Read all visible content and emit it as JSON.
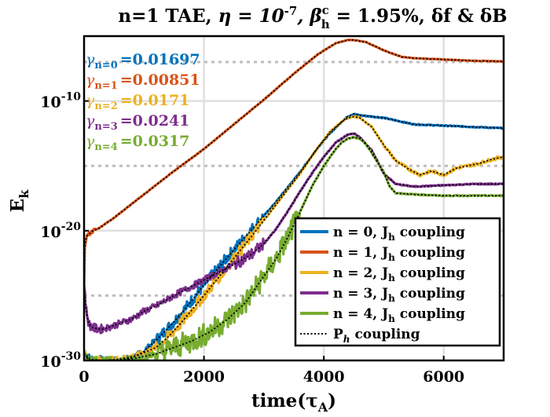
{
  "chart_data": {
    "type": "line",
    "title": "n=1 TAE, η = 10⁻⁷, βʰᶜ = 1.95%, δf & δB",
    "title_parts": {
      "lead": "n=1 TAE, ",
      "eta": "η = 10",
      "eta_exp": "-7",
      "beta": ", β",
      "beta_sup": "c",
      "beta_sub": "h",
      "beta_val": " = 1.95%, δf & δB"
    },
    "xlabel": "time(τ",
    "xlabel_sub": "A",
    "xlabel_close": ")",
    "ylabel": "E",
    "ylabel_sub": "k",
    "y_scale": "log",
    "xlim": [
      0,
      7000
    ],
    "ylim_exponent": [
      -30,
      -5
    ],
    "x_ticks": [
      {
        "value": 0,
        "label": "0"
      },
      {
        "value": 2000,
        "label": "2000"
      },
      {
        "value": 4000,
        "label": "4000"
      },
      {
        "value": 6000,
        "label": "6000"
      }
    ],
    "y_ticks": [
      {
        "exp": -10,
        "base": "10",
        "sup": "-10"
      },
      {
        "exp": -20,
        "base": "10",
        "sup": "-20"
      },
      {
        "exp": -30,
        "base": "10",
        "sup": "-30"
      }
    ],
    "grid": true,
    "legend_position": "bottom-right",
    "growth_rates": [
      {
        "symbol": "γ",
        "sub": "n=0",
        "value": "=0.01697",
        "color": "#0072BD"
      },
      {
        "symbol": "γ",
        "sub": "n=1",
        "value": "=0.00851",
        "color": "#D95319"
      },
      {
        "symbol": "γ",
        "sub": "n=2",
        "value": "=0.0171",
        "color": "#EDB120"
      },
      {
        "symbol": "γ",
        "sub": "n=3",
        "value": "=0.0241",
        "color": "#7E2F8E"
      },
      {
        "symbol": "γ",
        "sub": "n=4",
        "value": "=0.0317",
        "color": "#77AC30"
      }
    ],
    "series": [
      {
        "name": "n = 0, J",
        "name_sub": "h",
        "name_tail": " coupling",
        "color": "#0072BD",
        "x": [
          0,
          100,
          300,
          600,
          800,
          1000,
          1300,
          1600,
          2000,
          2400,
          2800,
          3200,
          3600,
          3900,
          4100,
          4300,
          4400,
          4500,
          4600,
          5000,
          5500,
          6000,
          6500,
          7000
        ],
        "log_e": [
          -29.4,
          -29.9,
          -30.0,
          -30.0,
          -29.8,
          -29.3,
          -28.0,
          -26.5,
          -24.2,
          -22.0,
          -19.9,
          -17.8,
          -15.5,
          -13.6,
          -12.5,
          -11.6,
          -11.2,
          -11.0,
          -11.1,
          -11.3,
          -11.8,
          -11.9,
          -12.0,
          -12.1
        ]
      },
      {
        "name": "n = 1, J",
        "name_sub": "h",
        "name_tail": " coupling",
        "color": "#D95319",
        "x": [
          0,
          10,
          30,
          60,
          100,
          150,
          250,
          500,
          1000,
          1500,
          2000,
          2500,
          3000,
          3500,
          3900,
          4200,
          4400,
          4500,
          4700,
          5000,
          5300,
          5500,
          6000,
          6500,
          7000
        ],
        "log_e": [
          -24.5,
          -21.5,
          -20.6,
          -20.3,
          -20.2,
          -20.0,
          -19.8,
          -19.0,
          -17.2,
          -15.4,
          -13.7,
          -11.8,
          -9.9,
          -7.9,
          -6.4,
          -5.55,
          -5.3,
          -5.3,
          -5.45,
          -6.1,
          -6.6,
          -6.7,
          -6.8,
          -6.9,
          -6.95
        ]
      },
      {
        "name": "n = 2, J",
        "name_sub": "h",
        "name_tail": " coupling",
        "color": "#EDB120",
        "x": [
          0,
          100,
          300,
          600,
          900,
          1200,
          1400,
          1600,
          2000,
          2400,
          2800,
          3200,
          3600,
          3900,
          4100,
          4300,
          4400,
          4500,
          4600,
          4800,
          5000,
          5200,
          5400,
          5600,
          5800,
          6000,
          6200,
          6400,
          6600,
          6800,
          7000
        ],
        "log_e": [
          -29.5,
          -30.0,
          -30.0,
          -29.9,
          -29.6,
          -29.0,
          -28.2,
          -27.2,
          -25.0,
          -22.7,
          -20.4,
          -18.0,
          -15.6,
          -13.6,
          -12.4,
          -11.6,
          -11.3,
          -11.2,
          -11.3,
          -12.0,
          -13.4,
          -14.6,
          -15.2,
          -15.7,
          -15.4,
          -15.7,
          -15.2,
          -15.0,
          -14.8,
          -14.5,
          -14.3
        ]
      },
      {
        "name": "n = 3, J",
        "name_sub": "h",
        "name_tail": " coupling",
        "color": "#7E2F8E",
        "x": [
          0,
          30,
          80,
          150,
          300,
          500,
          800,
          1000,
          1200,
          1500,
          2000,
          2500,
          2800,
          3000,
          3200,
          3400,
          3600,
          3800,
          4000,
          4200,
          4400,
          4500,
          4600,
          4800,
          5000,
          5200,
          5500,
          6000,
          6500,
          7000
        ],
        "log_e": [
          -24.0,
          -26.0,
          -27.2,
          -27.5,
          -27.6,
          -27.3,
          -26.8,
          -26.2,
          -25.8,
          -25.0,
          -23.8,
          -22.6,
          -21.8,
          -21.0,
          -19.9,
          -18.5,
          -17.0,
          -15.6,
          -14.3,
          -13.2,
          -12.6,
          -12.5,
          -12.8,
          -13.8,
          -15.6,
          -16.4,
          -16.6,
          -16.5,
          -16.4,
          -16.4
        ]
      },
      {
        "name": "n = 4, J",
        "name_sub": "h",
        "name_tail": " coupling",
        "color": "#77AC30",
        "x": [
          0,
          100,
          300,
          600,
          900,
          1200,
          1500,
          1800,
          2100,
          2400,
          2700,
          3000,
          3200,
          3400,
          3600,
          3800,
          4000,
          4200,
          4300,
          4400,
          4500,
          4600,
          4700,
          4800,
          5000,
          5100,
          5200,
          5500,
          6000,
          6500,
          7000
        ],
        "log_e": [
          -29.6,
          -30.0,
          -30.0,
          -30.0,
          -29.8,
          -29.5,
          -29.0,
          -28.5,
          -27.8,
          -26.8,
          -25.5,
          -23.5,
          -22.2,
          -20.5,
          -18.6,
          -16.6,
          -15.0,
          -13.7,
          -13.2,
          -12.9,
          -12.8,
          -12.9,
          -13.3,
          -14.0,
          -15.5,
          -16.6,
          -17.1,
          -17.2,
          -17.3,
          -17.3,
          -17.3
        ]
      }
    ],
    "reference": {
      "name": "P",
      "name_sub": "h",
      "name_tail": " coupling",
      "color": "#000000",
      "style": "dotted"
    }
  }
}
